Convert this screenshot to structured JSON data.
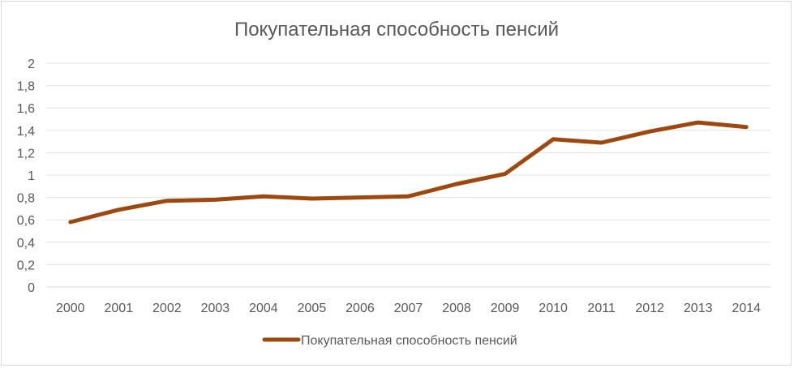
{
  "chart_data": {
    "type": "line",
    "title": "Покупательная способность пенсий",
    "xlabel": "",
    "ylabel": "",
    "categories": [
      "2000",
      "2001",
      "2002",
      "2003",
      "2004",
      "2005",
      "2006",
      "2007",
      "2008",
      "2009",
      "2010",
      "2011",
      "2012",
      "2013",
      "2014"
    ],
    "y_tick_labels": [
      "0",
      "0,2",
      "0,4",
      "0,6",
      "0,8",
      "1",
      "1,2",
      "1,4",
      "1,6",
      "1,8",
      "2"
    ],
    "ylim": [
      0,
      2
    ],
    "grid": true,
    "legend_position": "bottom",
    "series": [
      {
        "name": "Покупательная способность пенсий",
        "color": "#9e480e",
        "values": [
          0.58,
          0.69,
          0.77,
          0.78,
          0.81,
          0.79,
          0.8,
          0.81,
          0.92,
          1.01,
          1.32,
          1.29,
          1.39,
          1.47,
          1.43
        ]
      }
    ]
  }
}
